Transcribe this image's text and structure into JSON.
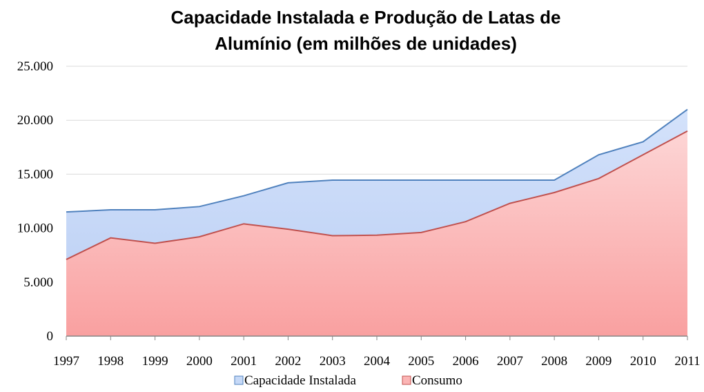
{
  "chart_data": {
    "type": "area",
    "title": [
      "Capacidade Instalada e Produção de Latas de",
      "Alumínio (em milhões de unidades)"
    ],
    "categories": [
      "1997",
      "1998",
      "1999",
      "2000",
      "2001",
      "2002",
      "2003",
      "2004",
      "2005",
      "2006",
      "2007",
      "2008",
      "2009",
      "2010",
      "2011"
    ],
    "series": [
      {
        "name": "Capacidade Instalada",
        "color": "#4f81bd",
        "fill": "#c6d9f7",
        "values": [
          11500,
          11700,
          11700,
          12000,
          13000,
          14200,
          14450,
          14450,
          14450,
          14450,
          14450,
          14450,
          16800,
          18000,
          21000
        ]
      },
      {
        "name": "Consumo",
        "color": "#c0504d",
        "fill": "#fbb5b5",
        "values": [
          7100,
          9100,
          8600,
          9200,
          10400,
          9900,
          9300,
          9350,
          9600,
          10600,
          12300,
          13300,
          14600,
          16800,
          19000
        ]
      }
    ],
    "ylim": [
      0,
      25000
    ],
    "yticks": [
      0,
      {
        "value": 5000,
        "label": "5.000"
      },
      {
        "value": 10000,
        "label": "10.000"
      },
      {
        "value": 15000,
        "label": "15.000"
      },
      {
        "value": 20000,
        "label": "20.000"
      },
      {
        "value": 25000,
        "label": "25.000"
      }
    ],
    "grid": true,
    "legend": "bottom"
  }
}
